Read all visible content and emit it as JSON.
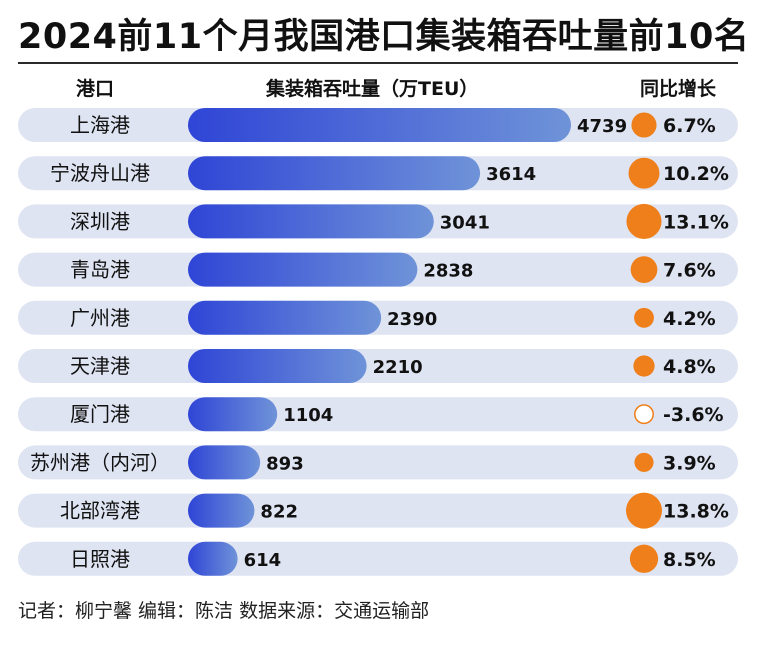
{
  "title": "2024前11个月我国港口集装箱吞吐量前10名",
  "headers": {
    "port": "港口",
    "volume": "集装箱吞吐量（万TEU）",
    "growth": "同比增长"
  },
  "footer": "记者：柳宁馨   编辑：陈洁   数据来源：交通运输部",
  "colors": {
    "row_bg": "#dfe4f2",
    "bar_start": "#2f45d6",
    "bar_end": "#6f93d8",
    "bubble": "#ee7f1a",
    "bubble_negative_fill": "#ffffff",
    "text": "#111111"
  },
  "chart_data": {
    "type": "bar",
    "orientation": "horizontal",
    "title": "2024前11个月我国港口集装箱吞吐量前10名",
    "xlabel": "集装箱吞吐量（万TEU）",
    "ylabel": "港口",
    "unit": "万TEU",
    "categories": [
      "上海港",
      "宁波舟山港",
      "深圳港",
      "青岛港",
      "广州港",
      "天津港",
      "厦门港",
      "苏州港（内河）",
      "北部湾港",
      "日照港"
    ],
    "values": [
      4739,
      3614,
      3041,
      2838,
      2390,
      2210,
      1104,
      893,
      822,
      614
    ],
    "xlim": [
      0,
      4739
    ],
    "growth": {
      "name": "同比增长",
      "values": [
        6.7,
        10.2,
        13.1,
        7.6,
        4.2,
        4.8,
        -3.6,
        3.9,
        13.8,
        8.5
      ],
      "labels": [
        "6.7%",
        "10.2%",
        "13.1%",
        "7.6%",
        "4.2%",
        "4.8%",
        "-3.6%",
        "3.9%",
        "13.8%",
        "8.5%"
      ]
    }
  }
}
